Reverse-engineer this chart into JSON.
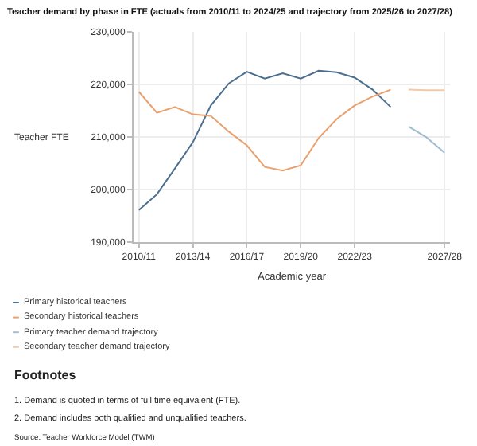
{
  "chart_data": {
    "type": "line",
    "title": "Teacher demand by phase in FTE (actuals from 2010/11 to 2024/25 and trajectory from 2025/26 to 2027/28)",
    "xlabel": "Academic year",
    "ylabel": "Teacher FTE",
    "categories": [
      "2010/11",
      null,
      null,
      "2013/14",
      null,
      null,
      "2016/17",
      null,
      null,
      "2019/20",
      null,
      null,
      "2022/23",
      null,
      null,
      null,
      null,
      "2027/28"
    ],
    "series": [
      {
        "name": "Primary historical teachers",
        "color": "#4d6f8f",
        "values": [
          196100,
          199100,
          204000,
          209000,
          216000,
          220200,
          222400,
          221100,
          222100,
          221100,
          222600,
          222300,
          221300,
          219000,
          215700,
          null,
          null,
          null
        ]
      },
      {
        "name": "Secondary historical teachers",
        "color": "#e9a06e",
        "values": [
          218600,
          214600,
          215700,
          214300,
          214000,
          211000,
          208400,
          204300,
          203600,
          204600,
          209800,
          213400,
          216000,
          217700,
          219000,
          null,
          null,
          null
        ]
      },
      {
        "name": "Primary teacher demand trajectory",
        "color": "#a3bccf",
        "values": [
          null,
          null,
          null,
          null,
          null,
          null,
          null,
          null,
          null,
          null,
          null,
          null,
          null,
          null,
          null,
          212000,
          209900,
          207000
        ]
      },
      {
        "name": "Secondary teacher demand trajectory",
        "color": "#f2c9a9",
        "values": [
          null,
          null,
          null,
          null,
          null,
          null,
          null,
          null,
          null,
          null,
          null,
          null,
          null,
          null,
          null,
          219000,
          218900,
          218900
        ]
      }
    ],
    "ylim": [
      190000,
      230000
    ],
    "yticks": [
      {
        "value": 190000,
        "label": "190,000"
      },
      {
        "value": 200000,
        "label": "200,000"
      },
      {
        "value": 210000,
        "label": "210,000"
      },
      {
        "value": 220000,
        "label": "220,000"
      },
      {
        "value": 230000,
        "label": "230,000"
      }
    ],
    "grid": true,
    "legend": "bottom",
    "marker": "none",
    "line_style": "solid",
    "annotations": [
      "Footnotes",
      "1. Demand is quoted in terms of full time equivalent (FTE).",
      "2. Demand includes both qualified and unqualified teachers.",
      "Source: Teacher Workforce Model (TWM)"
    ]
  }
}
